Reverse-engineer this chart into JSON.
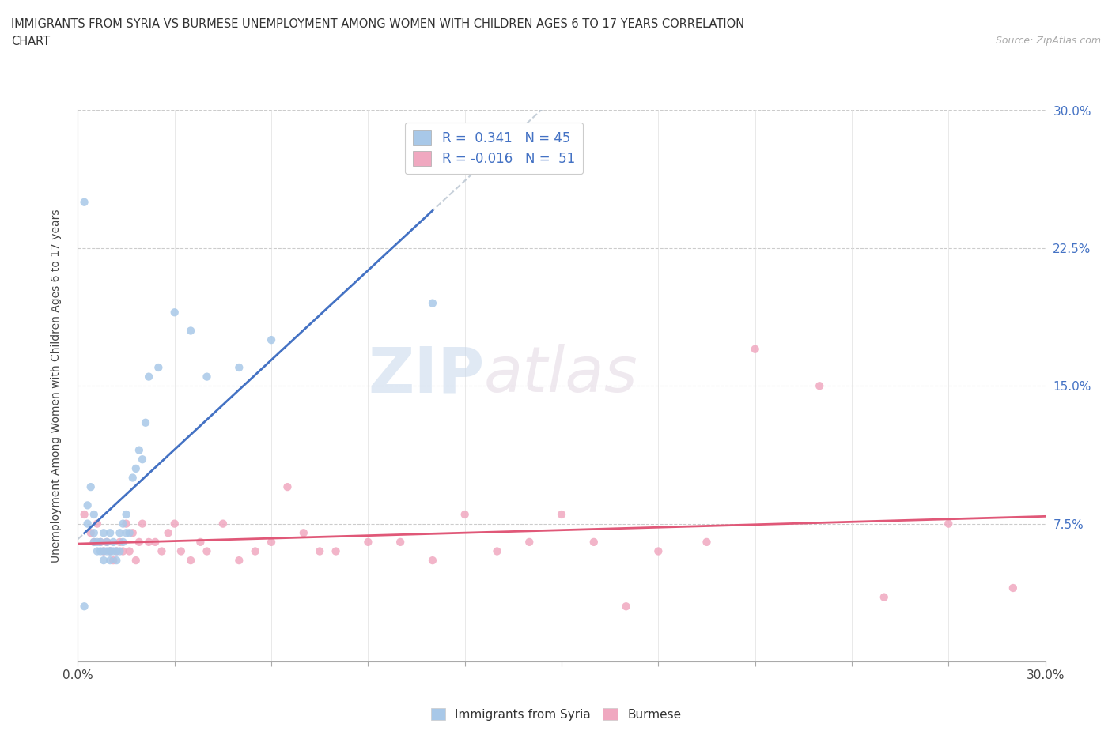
{
  "title_line1": "IMMIGRANTS FROM SYRIA VS BURMESE UNEMPLOYMENT AMONG WOMEN WITH CHILDREN AGES 6 TO 17 YEARS CORRELATION",
  "title_line2": "CHART",
  "source_text": "Source: ZipAtlas.com",
  "ylabel": "Unemployment Among Women with Children Ages 6 to 17 years",
  "xlim": [
    0.0,
    0.3
  ],
  "ylim": [
    0.0,
    0.3
  ],
  "ytick_vals": [
    0.0,
    0.075,
    0.15,
    0.225,
    0.3
  ],
  "ytick_labels": [
    "",
    "7.5%",
    "15.0%",
    "22.5%",
    "30.0%"
  ],
  "legend_label1": "Immigrants from Syria",
  "legend_label2": "Burmese",
  "r1": 0.341,
  "n1": 45,
  "r2": -0.016,
  "n2": 51,
  "color_syria": "#a8c8e8",
  "color_burmese": "#f0a8c0",
  "color_syria_line": "#4472c4",
  "color_burmese_line": "#e05878",
  "color_trend_dashed": "#b8c4d0",
  "watermark_zip": "ZIP",
  "watermark_atlas": "atlas",
  "syria_x": [
    0.002,
    0.003,
    0.003,
    0.004,
    0.005,
    0.005,
    0.005,
    0.006,
    0.006,
    0.007,
    0.007,
    0.008,
    0.008,
    0.008,
    0.009,
    0.009,
    0.01,
    0.01,
    0.01,
    0.01,
    0.011,
    0.011,
    0.012,
    0.012,
    0.013,
    0.013,
    0.014,
    0.014,
    0.015,
    0.015,
    0.016,
    0.017,
    0.018,
    0.019,
    0.02,
    0.021,
    0.022,
    0.025,
    0.03,
    0.035,
    0.04,
    0.05,
    0.06,
    0.11,
    0.002
  ],
  "syria_y": [
    0.03,
    0.075,
    0.085,
    0.095,
    0.065,
    0.07,
    0.08,
    0.06,
    0.065,
    0.06,
    0.065,
    0.055,
    0.06,
    0.07,
    0.06,
    0.065,
    0.055,
    0.06,
    0.06,
    0.07,
    0.06,
    0.065,
    0.055,
    0.06,
    0.06,
    0.07,
    0.065,
    0.075,
    0.07,
    0.08,
    0.07,
    0.1,
    0.105,
    0.115,
    0.11,
    0.13,
    0.155,
    0.16,
    0.19,
    0.18,
    0.155,
    0.16,
    0.175,
    0.195,
    0.25
  ],
  "burmese_x": [
    0.002,
    0.004,
    0.005,
    0.006,
    0.007,
    0.008,
    0.009,
    0.01,
    0.011,
    0.012,
    0.013,
    0.014,
    0.015,
    0.016,
    0.017,
    0.018,
    0.019,
    0.02,
    0.022,
    0.024,
    0.026,
    0.028,
    0.03,
    0.032,
    0.035,
    0.038,
    0.04,
    0.045,
    0.05,
    0.055,
    0.06,
    0.065,
    0.07,
    0.075,
    0.08,
    0.09,
    0.1,
    0.11,
    0.12,
    0.13,
    0.14,
    0.15,
    0.16,
    0.17,
    0.18,
    0.195,
    0.21,
    0.23,
    0.25,
    0.27,
    0.29
  ],
  "burmese_y": [
    0.08,
    0.07,
    0.065,
    0.075,
    0.065,
    0.06,
    0.065,
    0.06,
    0.055,
    0.06,
    0.065,
    0.06,
    0.075,
    0.06,
    0.07,
    0.055,
    0.065,
    0.075,
    0.065,
    0.065,
    0.06,
    0.07,
    0.075,
    0.06,
    0.055,
    0.065,
    0.06,
    0.075,
    0.055,
    0.06,
    0.065,
    0.095,
    0.07,
    0.06,
    0.06,
    0.065,
    0.065,
    0.055,
    0.08,
    0.06,
    0.065,
    0.08,
    0.065,
    0.03,
    0.06,
    0.065,
    0.17,
    0.15,
    0.035,
    0.075,
    0.04
  ]
}
